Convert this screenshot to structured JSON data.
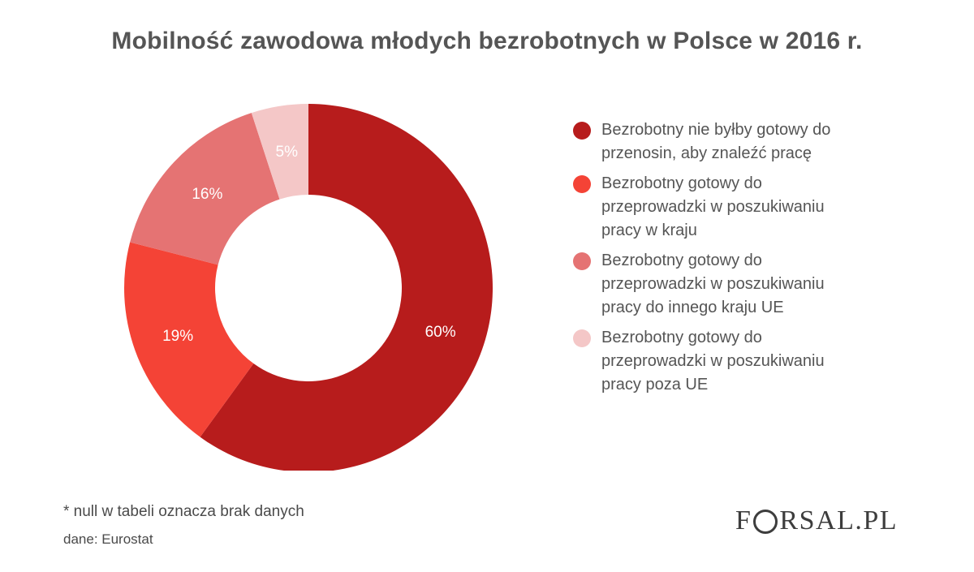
{
  "title": "Mobilność zawodowa młodych bezrobotnych w Polsce w 2016 r.",
  "chart_data": {
    "type": "pie",
    "donut": true,
    "title": "Mobilność zawodowa młodych bezrobotnych w Polsce w 2016 r.",
    "legend_position": "right",
    "slices": [
      {
        "label": "Bezrobotny nie byłby gotowy do przenosin, aby znaleźć pracę",
        "value": 60,
        "value_label": "60%",
        "color": "#b71c1c"
      },
      {
        "label": "Bezrobotny gotowy do przeprowadzki w poszukiwaniu pracy w kraju",
        "value": 19,
        "value_label": "19%",
        "color": "#f44336"
      },
      {
        "label": "Bezrobotny gotowy do przeprowadzki w poszukiwaniu pracy do innego kraju UE",
        "value": 16,
        "value_label": "16%",
        "color": "#e57373"
      },
      {
        "label": "Bezrobotny gotowy do przeprowadzki w poszukiwaniu pracy poza UE",
        "value": 5,
        "value_label": "5%",
        "color": "#f4c7c7"
      }
    ]
  },
  "footer": {
    "note": "* null w tabeli oznacza brak danych",
    "source": "dane: Eurostat"
  },
  "logo": {
    "text": "FORSAL.PL"
  }
}
